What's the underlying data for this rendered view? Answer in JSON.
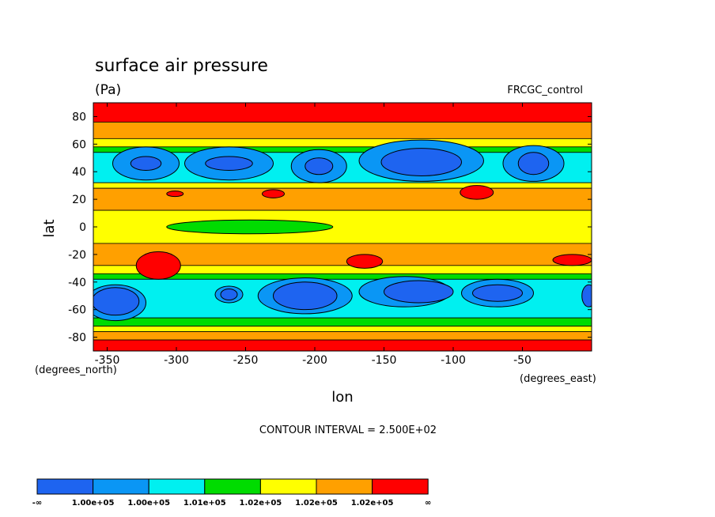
{
  "chart_data": {
    "type": "heatmap",
    "title": "surface air pressure",
    "units": "(Pa)",
    "run_label": "FRCGC_control",
    "xlabel": "lon",
    "ylabel": "lat",
    "x_unit_label": "(degrees_east)",
    "y_unit_label": "(degrees_north)",
    "xlim": [
      -360,
      0
    ],
    "ylim": [
      -90,
      90
    ],
    "x_ticks": [
      -350,
      -300,
      -250,
      -200,
      -150,
      -100,
      -50
    ],
    "x_tick_labels": [
      "-350",
      "-300",
      "-250",
      "-200",
      "-150",
      "-100",
      "-50"
    ],
    "y_ticks": [
      80,
      60,
      40,
      20,
      0,
      -20,
      -40,
      -60,
      -80
    ],
    "y_tick_labels": [
      "80",
      "60",
      "40",
      "20",
      "0",
      "-20",
      "-40",
      "-60",
      "-80"
    ],
    "contour_interval_text": "CONTOUR INTERVAL = 2.500E+02",
    "levels_labels": [
      "-∞",
      "1.00e+05",
      "1.00e+05",
      "1.01e+05",
      "1.02e+05",
      "1.02e+05",
      "1.02e+05",
      "∞"
    ],
    "colors": [
      "#1e64f0",
      "#0a96f5",
      "#00f0f0",
      "#00dc00",
      "#ffff00",
      "#ffa000",
      "#ff0000"
    ],
    "zonal_bands": [
      {
        "lat_range": [
          76,
          90
        ],
        "class": 6
      },
      {
        "lat_range": [
          64,
          76
        ],
        "class": 5
      },
      {
        "lat_range": [
          58,
          64
        ],
        "class": 4
      },
      {
        "lat_range": [
          54,
          58
        ],
        "class": 3
      },
      {
        "lat_range": [
          32,
          54
        ],
        "class": 2
      },
      {
        "lat_range": [
          28,
          32
        ],
        "class": 4
      },
      {
        "lat_range": [
          12,
          28
        ],
        "class": 5
      },
      {
        "lat_range": [
          -12,
          12
        ],
        "class": 4
      },
      {
        "lat_range": [
          -28,
          -12
        ],
        "class": 5
      },
      {
        "lat_range": [
          -34,
          -28
        ],
        "class": 4
      },
      {
        "lat_range": [
          -38,
          -34
        ],
        "class": 3
      },
      {
        "lat_range": [
          -66,
          -38
        ],
        "class": 2
      },
      {
        "lat_range": [
          -72,
          -66
        ],
        "class": 3
      },
      {
        "lat_range": [
          -76,
          -72
        ],
        "class": 4
      },
      {
        "lat_range": [
          -82,
          -76
        ],
        "class": 5
      },
      {
        "lat_range": [
          -90,
          -82
        ],
        "class": 6
      }
    ],
    "features": [
      {
        "class": 1,
        "lon": -322,
        "lat": 46,
        "dlon": 24,
        "dlat": 12
      },
      {
        "class": 0,
        "lon": -322,
        "lat": 46,
        "dlon": 11,
        "dlat": 5
      },
      {
        "class": 1,
        "lon": -262,
        "lat": 46,
        "dlon": 32,
        "dlat": 12
      },
      {
        "class": 0,
        "lon": -262,
        "lat": 46,
        "dlon": 17,
        "dlat": 5
      },
      {
        "class": 1,
        "lon": -197,
        "lat": 44,
        "dlon": 20,
        "dlat": 12
      },
      {
        "class": 0,
        "lon": -197,
        "lat": 44,
        "dlon": 10,
        "dlat": 6
      },
      {
        "class": 1,
        "lon": -123,
        "lat": 48,
        "dlon": 45,
        "dlat": 15
      },
      {
        "class": 0,
        "lon": -123,
        "lat": 47,
        "dlon": 29,
        "dlat": 10
      },
      {
        "class": 1,
        "lon": -42,
        "lat": 46,
        "dlon": 22,
        "dlat": 13
      },
      {
        "class": 0,
        "lon": -42,
        "lat": 46,
        "dlon": 11,
        "dlat": 8
      },
      {
        "class": 6,
        "lon": -301,
        "lat": 24,
        "dlon": 6,
        "dlat": 2
      },
      {
        "class": 6,
        "lon": -230,
        "lat": 24,
        "dlon": 8,
        "dlat": 3
      },
      {
        "class": 6,
        "lon": -83,
        "lat": 25,
        "dlon": 12,
        "dlat": 5
      },
      {
        "class": 3,
        "lon": -247,
        "lat": 0,
        "dlon": 60,
        "dlat": 5
      },
      {
        "class": 6,
        "lon": -313,
        "lat": -28,
        "dlon": 16,
        "dlat": 10
      },
      {
        "class": 6,
        "lon": -164,
        "lat": -25,
        "dlon": 13,
        "dlat": 5
      },
      {
        "class": 6,
        "lon": -14,
        "lat": -24,
        "dlon": 14,
        "dlat": 4
      },
      {
        "class": 1,
        "lon": -344,
        "lat": -55,
        "dlon": 22,
        "dlat": 13
      },
      {
        "class": 0,
        "lon": -344,
        "lat": -54,
        "dlon": 17,
        "dlat": 10
      },
      {
        "class": 1,
        "lon": -262,
        "lat": -49,
        "dlon": 10,
        "dlat": 6
      },
      {
        "class": 0,
        "lon": -262,
        "lat": -49,
        "dlon": 6,
        "dlat": 4
      },
      {
        "class": 1,
        "lon": -207,
        "lat": -50,
        "dlon": 34,
        "dlat": 13
      },
      {
        "class": 0,
        "lon": -207,
        "lat": -50,
        "dlon": 23,
        "dlat": 10
      },
      {
        "class": 1,
        "lon": -135,
        "lat": -47,
        "dlon": 33,
        "dlat": 11
      },
      {
        "class": 0,
        "lon": -125,
        "lat": -47,
        "dlon": 25,
        "dlat": 8
      },
      {
        "class": 1,
        "lon": -68,
        "lat": -48,
        "dlon": 26,
        "dlat": 10
      },
      {
        "class": 0,
        "lon": -68,
        "lat": -48,
        "dlon": 18,
        "dlat": 6
      },
      {
        "class": 0,
        "lon": -2,
        "lat": -50,
        "dlon": 5,
        "dlat": 8
      }
    ]
  }
}
